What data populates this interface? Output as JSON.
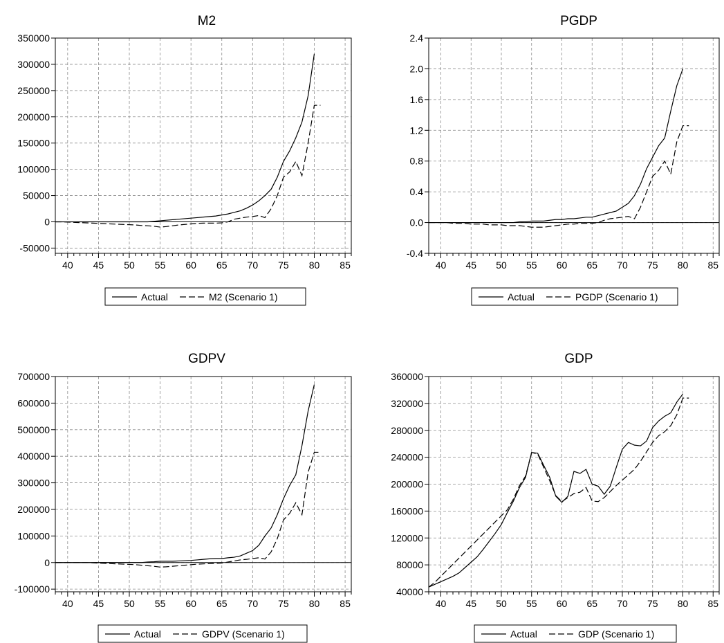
{
  "chart_data": [
    {
      "type": "line",
      "title": "M2",
      "x": [
        38,
        39,
        40,
        41,
        42,
        43,
        44,
        45,
        46,
        47,
        48,
        49,
        50,
        51,
        52,
        53,
        54,
        55,
        56,
        57,
        58,
        59,
        60,
        61,
        62,
        63,
        64,
        65,
        66,
        67,
        68,
        69,
        70,
        71,
        72,
        73,
        74,
        75,
        76,
        77,
        78,
        79,
        80,
        81
      ],
      "xlim": [
        38,
        86
      ],
      "xticks": [
        "40",
        "45",
        "50",
        "55",
        "60",
        "65",
        "70",
        "75",
        "80",
        "85"
      ],
      "ylim": [
        -60000,
        350000
      ],
      "yticks": [
        "-50000",
        "0",
        "50000",
        "100000",
        "150000",
        "200000",
        "250000",
        "300000",
        "350000"
      ],
      "series": [
        {
          "name": "Actual",
          "style": "solid",
          "values": [
            0,
            0,
            0,
            0,
            0,
            0,
            0,
            0,
            0,
            0,
            0,
            0,
            0,
            0,
            0,
            0,
            1000,
            2000,
            3000,
            4000,
            5000,
            6000,
            7000,
            8000,
            9000,
            10000,
            11000,
            13000,
            15000,
            18000,
            21000,
            26000,
            32000,
            40000,
            50000,
            62000,
            85000,
            115000,
            135000,
            160000,
            190000,
            240000,
            320000,
            null
          ]
        },
        {
          "name": "M2 (Scenario 1)",
          "style": "dashed",
          "values": [
            0,
            0,
            -500,
            -1000,
            -1500,
            -2000,
            -2500,
            -3000,
            -3500,
            -4000,
            -4500,
            -5000,
            -5500,
            -6000,
            -7000,
            -7500,
            -8500,
            -10000,
            -9000,
            -7500,
            -6000,
            -5000,
            -4000,
            -3000,
            -2500,
            -2500,
            -2500,
            -2000,
            0,
            5000,
            7000,
            9000,
            10000,
            12000,
            8000,
            25000,
            50000,
            85000,
            95000,
            115000,
            88000,
            150000,
            222000,
            222000
          ]
        }
      ],
      "legend": [
        "Actual",
        "M2 (Scenario 1)"
      ]
    },
    {
      "type": "line",
      "title": "PGDP",
      "x": [
        38,
        39,
        40,
        41,
        42,
        43,
        44,
        45,
        46,
        47,
        48,
        49,
        50,
        51,
        52,
        53,
        54,
        55,
        56,
        57,
        58,
        59,
        60,
        61,
        62,
        63,
        64,
        65,
        66,
        67,
        68,
        69,
        70,
        71,
        72,
        73,
        74,
        75,
        76,
        77,
        78,
        79,
        80,
        81
      ],
      "xlim": [
        38,
        86
      ],
      "xticks": [
        "40",
        "45",
        "50",
        "55",
        "60",
        "65",
        "70",
        "75",
        "80",
        "85"
      ],
      "ylim": [
        -0.4,
        2.4
      ],
      "yticks": [
        "-0.4",
        "0.0",
        "0.4",
        "0.8",
        "1.2",
        "1.6",
        "2.0",
        "2.4"
      ],
      "series": [
        {
          "name": "Actual",
          "style": "solid",
          "values": [
            0,
            0,
            0,
            0,
            0,
            0,
            0,
            0,
            0,
            0,
            0,
            0,
            0,
            0,
            0,
            0.01,
            0.01,
            0.02,
            0.02,
            0.02,
            0.03,
            0.04,
            0.04,
            0.05,
            0.05,
            0.06,
            0.07,
            0.07,
            0.09,
            0.11,
            0.13,
            0.15,
            0.2,
            0.25,
            0.35,
            0.5,
            0.7,
            0.85,
            1.0,
            1.1,
            1.45,
            1.78,
            2.0,
            null
          ]
        },
        {
          "name": "PGDP (Scenario 1)",
          "style": "dashed",
          "values": [
            0,
            0,
            0,
            0,
            -0.01,
            -0.01,
            -0.01,
            -0.02,
            -0.02,
            -0.02,
            -0.03,
            -0.03,
            -0.03,
            -0.04,
            -0.04,
            -0.04,
            -0.05,
            -0.06,
            -0.06,
            -0.06,
            -0.05,
            -0.04,
            -0.03,
            -0.02,
            -0.02,
            -0.01,
            -0.01,
            -0.01,
            0.0,
            0.03,
            0.05,
            0.06,
            0.07,
            0.08,
            0.05,
            0.2,
            0.4,
            0.6,
            0.68,
            0.8,
            0.63,
            1.05,
            1.26,
            1.26
          ]
        }
      ],
      "legend": [
        "Actual",
        "PGDP (Scenario 1)"
      ]
    },
    {
      "type": "line",
      "title": "GDPV",
      "x": [
        38,
        39,
        40,
        41,
        42,
        43,
        44,
        45,
        46,
        47,
        48,
        49,
        50,
        51,
        52,
        53,
        54,
        55,
        56,
        57,
        58,
        59,
        60,
        61,
        62,
        63,
        64,
        65,
        66,
        67,
        68,
        69,
        70,
        71,
        72,
        73,
        74,
        75,
        76,
        77,
        78,
        79,
        80,
        81
      ],
      "xlim": [
        38,
        86
      ],
      "xticks": [
        "40",
        "45",
        "50",
        "55",
        "60",
        "65",
        "70",
        "75",
        "80",
        "85"
      ],
      "ylim": [
        -110000,
        700000
      ],
      "yticks": [
        "-100000",
        "0",
        "100000",
        "200000",
        "300000",
        "400000",
        "500000",
        "600000",
        "700000"
      ],
      "series": [
        {
          "name": "Actual",
          "style": "solid",
          "values": [
            0,
            0,
            0,
            0,
            0,
            0,
            0,
            0,
            0,
            0,
            0,
            0,
            0,
            0,
            0,
            2000,
            3000,
            5000,
            5000,
            5000,
            6000,
            7000,
            8000,
            10000,
            12000,
            14000,
            15000,
            15000,
            18000,
            20000,
            25000,
            35000,
            45000,
            65000,
            100000,
            130000,
            180000,
            240000,
            290000,
            330000,
            440000,
            570000,
            670000,
            null
          ]
        },
        {
          "name": "GDPV (Scenario 1)",
          "style": "dashed",
          "values": [
            0,
            0,
            0,
            0,
            0,
            0,
            -1000,
            -2000,
            -3000,
            -4000,
            -5000,
            -6000,
            -7000,
            -8000,
            -10000,
            -12000,
            -14000,
            -17000,
            -16000,
            -14000,
            -12000,
            -10000,
            -8000,
            -6000,
            -5000,
            -4000,
            -3000,
            -2000,
            2000,
            6000,
            10000,
            12000,
            15000,
            18000,
            13000,
            40000,
            90000,
            160000,
            185000,
            225000,
            180000,
            340000,
            415000,
            415000
          ]
        }
      ],
      "legend": [
        "Actual",
        "GDPV (Scenario 1)"
      ]
    },
    {
      "type": "line",
      "title": "GDP",
      "x": [
        38,
        39,
        40,
        41,
        42,
        43,
        44,
        45,
        46,
        47,
        48,
        49,
        50,
        51,
        52,
        53,
        54,
        55,
        56,
        57,
        58,
        59,
        60,
        61,
        62,
        63,
        64,
        65,
        66,
        67,
        68,
        69,
        70,
        71,
        72,
        73,
        74,
        75,
        76,
        77,
        78,
        79,
        80,
        81
      ],
      "xlim": [
        38,
        86
      ],
      "xticks": [
        "40",
        "45",
        "50",
        "55",
        "60",
        "65",
        "70",
        "75",
        "80",
        "85"
      ],
      "ylim": [
        40000,
        360000
      ],
      "yticks": [
        "40000",
        "80000",
        "120000",
        "160000",
        "200000",
        "240000",
        "280000",
        "320000",
        "360000"
      ],
      "series": [
        {
          "name": "Actual",
          "style": "solid",
          "values": [
            47000,
            51000,
            55000,
            59000,
            63000,
            68000,
            76000,
            84000,
            92000,
            103000,
            115000,
            127000,
            140000,
            158000,
            175000,
            195000,
            210000,
            247000,
            246000,
            228000,
            210000,
            182000,
            173000,
            182000,
            219000,
            216000,
            222000,
            200000,
            197000,
            185000,
            197000,
            225000,
            252000,
            262000,
            258000,
            257000,
            264000,
            284000,
            294000,
            301000,
            306000,
            322000,
            334000,
            null
          ]
        },
        {
          "name": "GDP (Scenario 1)",
          "style": "dashed",
          "values": [
            47000,
            54000,
            63000,
            72000,
            81000,
            90000,
            99000,
            108000,
            117000,
            126000,
            135000,
            144000,
            153000,
            162000,
            178000,
            198000,
            212000,
            247000,
            245000,
            225000,
            205000,
            183000,
            174000,
            180000,
            186000,
            188000,
            195000,
            175000,
            174000,
            180000,
            189000,
            198000,
            206000,
            214000,
            222000,
            234000,
            248000,
            262000,
            272000,
            278000,
            287000,
            303000,
            328000,
            328000
          ]
        }
      ],
      "legend": [
        "Actual",
        "GDP (Scenario 1)"
      ]
    }
  ]
}
